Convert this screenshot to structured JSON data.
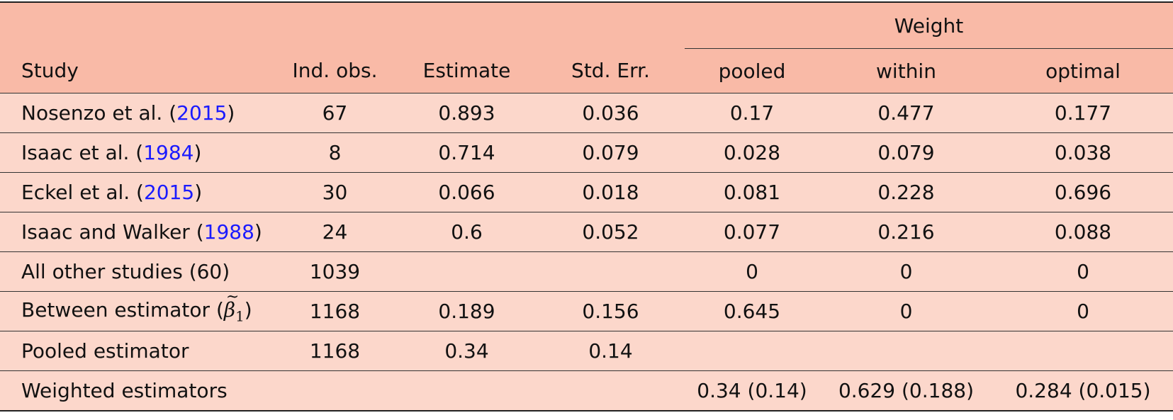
{
  "table": {
    "header": {
      "group_label": "Weight",
      "columns": [
        "Study",
        "Ind. obs.",
        "Estimate",
        "Std. Err.",
        "pooled",
        "within",
        "optimal"
      ]
    },
    "rows": [
      {
        "study_pre": "Nosenzo et al. (",
        "cite": "2015",
        "study_post": ")",
        "ind": "67",
        "est": "0.893",
        "se": "0.036",
        "pooled": "0.17",
        "within": "0.477",
        "optimal": "0.177"
      },
      {
        "study_pre": "Isaac et al. (",
        "cite": "1984",
        "study_post": ")",
        "ind": "8",
        "est": "0.714",
        "se": "0.079",
        "pooled": "0.028",
        "within": "0.079",
        "optimal": "0.038"
      },
      {
        "study_pre": "Eckel et al. (",
        "cite": "2015",
        "study_post": ")",
        "ind": "30",
        "est": "0.066",
        "se": "0.018",
        "pooled": "0.081",
        "within": "0.228",
        "optimal": "0.696"
      },
      {
        "study_pre": "Isaac and Walker (",
        "cite": "1988",
        "study_post": ")",
        "ind": "24",
        "est": "0.6",
        "se": "0.052",
        "pooled": "0.077",
        "within": "0.216",
        "optimal": "0.088"
      },
      {
        "study_pre": "All other studies (60)",
        "cite": "",
        "study_post": "",
        "ind": "1039",
        "est": "",
        "se": "",
        "pooled": "0",
        "within": "0",
        "optimal": "0"
      },
      {
        "study_pre": "Between estimator (",
        "math_symbol": "β",
        "math_sub": "1",
        "study_post": ")",
        "ind": "1168",
        "est": "0.189",
        "se": "0.156",
        "pooled": "0.645",
        "within": "0",
        "optimal": "0"
      },
      {
        "study_pre": "Pooled estimator",
        "cite": "",
        "study_post": "",
        "ind": "1168",
        "est": "0.34",
        "se": "0.14",
        "pooled": "",
        "within": "",
        "optimal": ""
      },
      {
        "study_pre": "Weighted estimators",
        "cite": "",
        "study_post": "",
        "ind": "",
        "est": "",
        "se": "",
        "pooled": "0.34 (0.14)",
        "within": "0.629 (0.188)",
        "optimal": "0.284 (0.015)"
      }
    ]
  },
  "colors": {
    "header_bg": "#f9baa7",
    "body_bg": "#fcd7cb",
    "citation_link": "#1a1aff"
  }
}
